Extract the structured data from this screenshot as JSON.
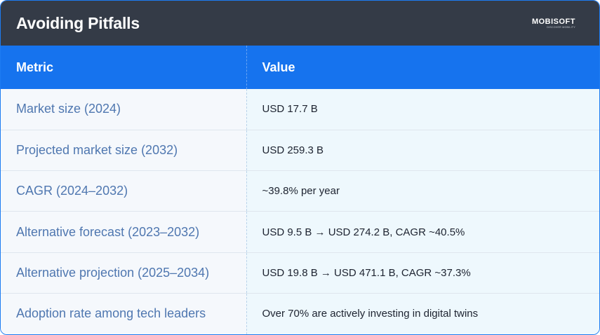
{
  "header": {
    "title": "Avoiding Pitfalls",
    "logo_text": "MOBISOFT",
    "logo_tagline": "DISCOVER MOBILITY"
  },
  "table": {
    "columns": [
      "Metric",
      "Value"
    ],
    "rows": [
      {
        "metric": "Market size (2024)",
        "value": "USD 17.7 B"
      },
      {
        "metric": "Projected market size (2032)",
        "value": "USD 259.3 B"
      },
      {
        "metric": "CAGR (2024–2032)",
        "value": "~39.8% per year"
      },
      {
        "metric": "Alternative forecast (2023–2032)",
        "value": "USD 9.5 B → USD 274.2 B, CAGR ~40.5%"
      },
      {
        "metric": "Alternative projection (2025–2034)",
        "value": "USD 19.8 B → USD 471.1 B, CAGR ~37.3%"
      },
      {
        "metric": "Adoption rate among tech leaders",
        "value": "Over 70% are actively investing in digital twins"
      }
    ]
  },
  "colors": {
    "header_bg": "#343b47",
    "table_header_bg": "#1673ee",
    "metric_text": "#4f77b0",
    "border": "#1d7cf2"
  }
}
